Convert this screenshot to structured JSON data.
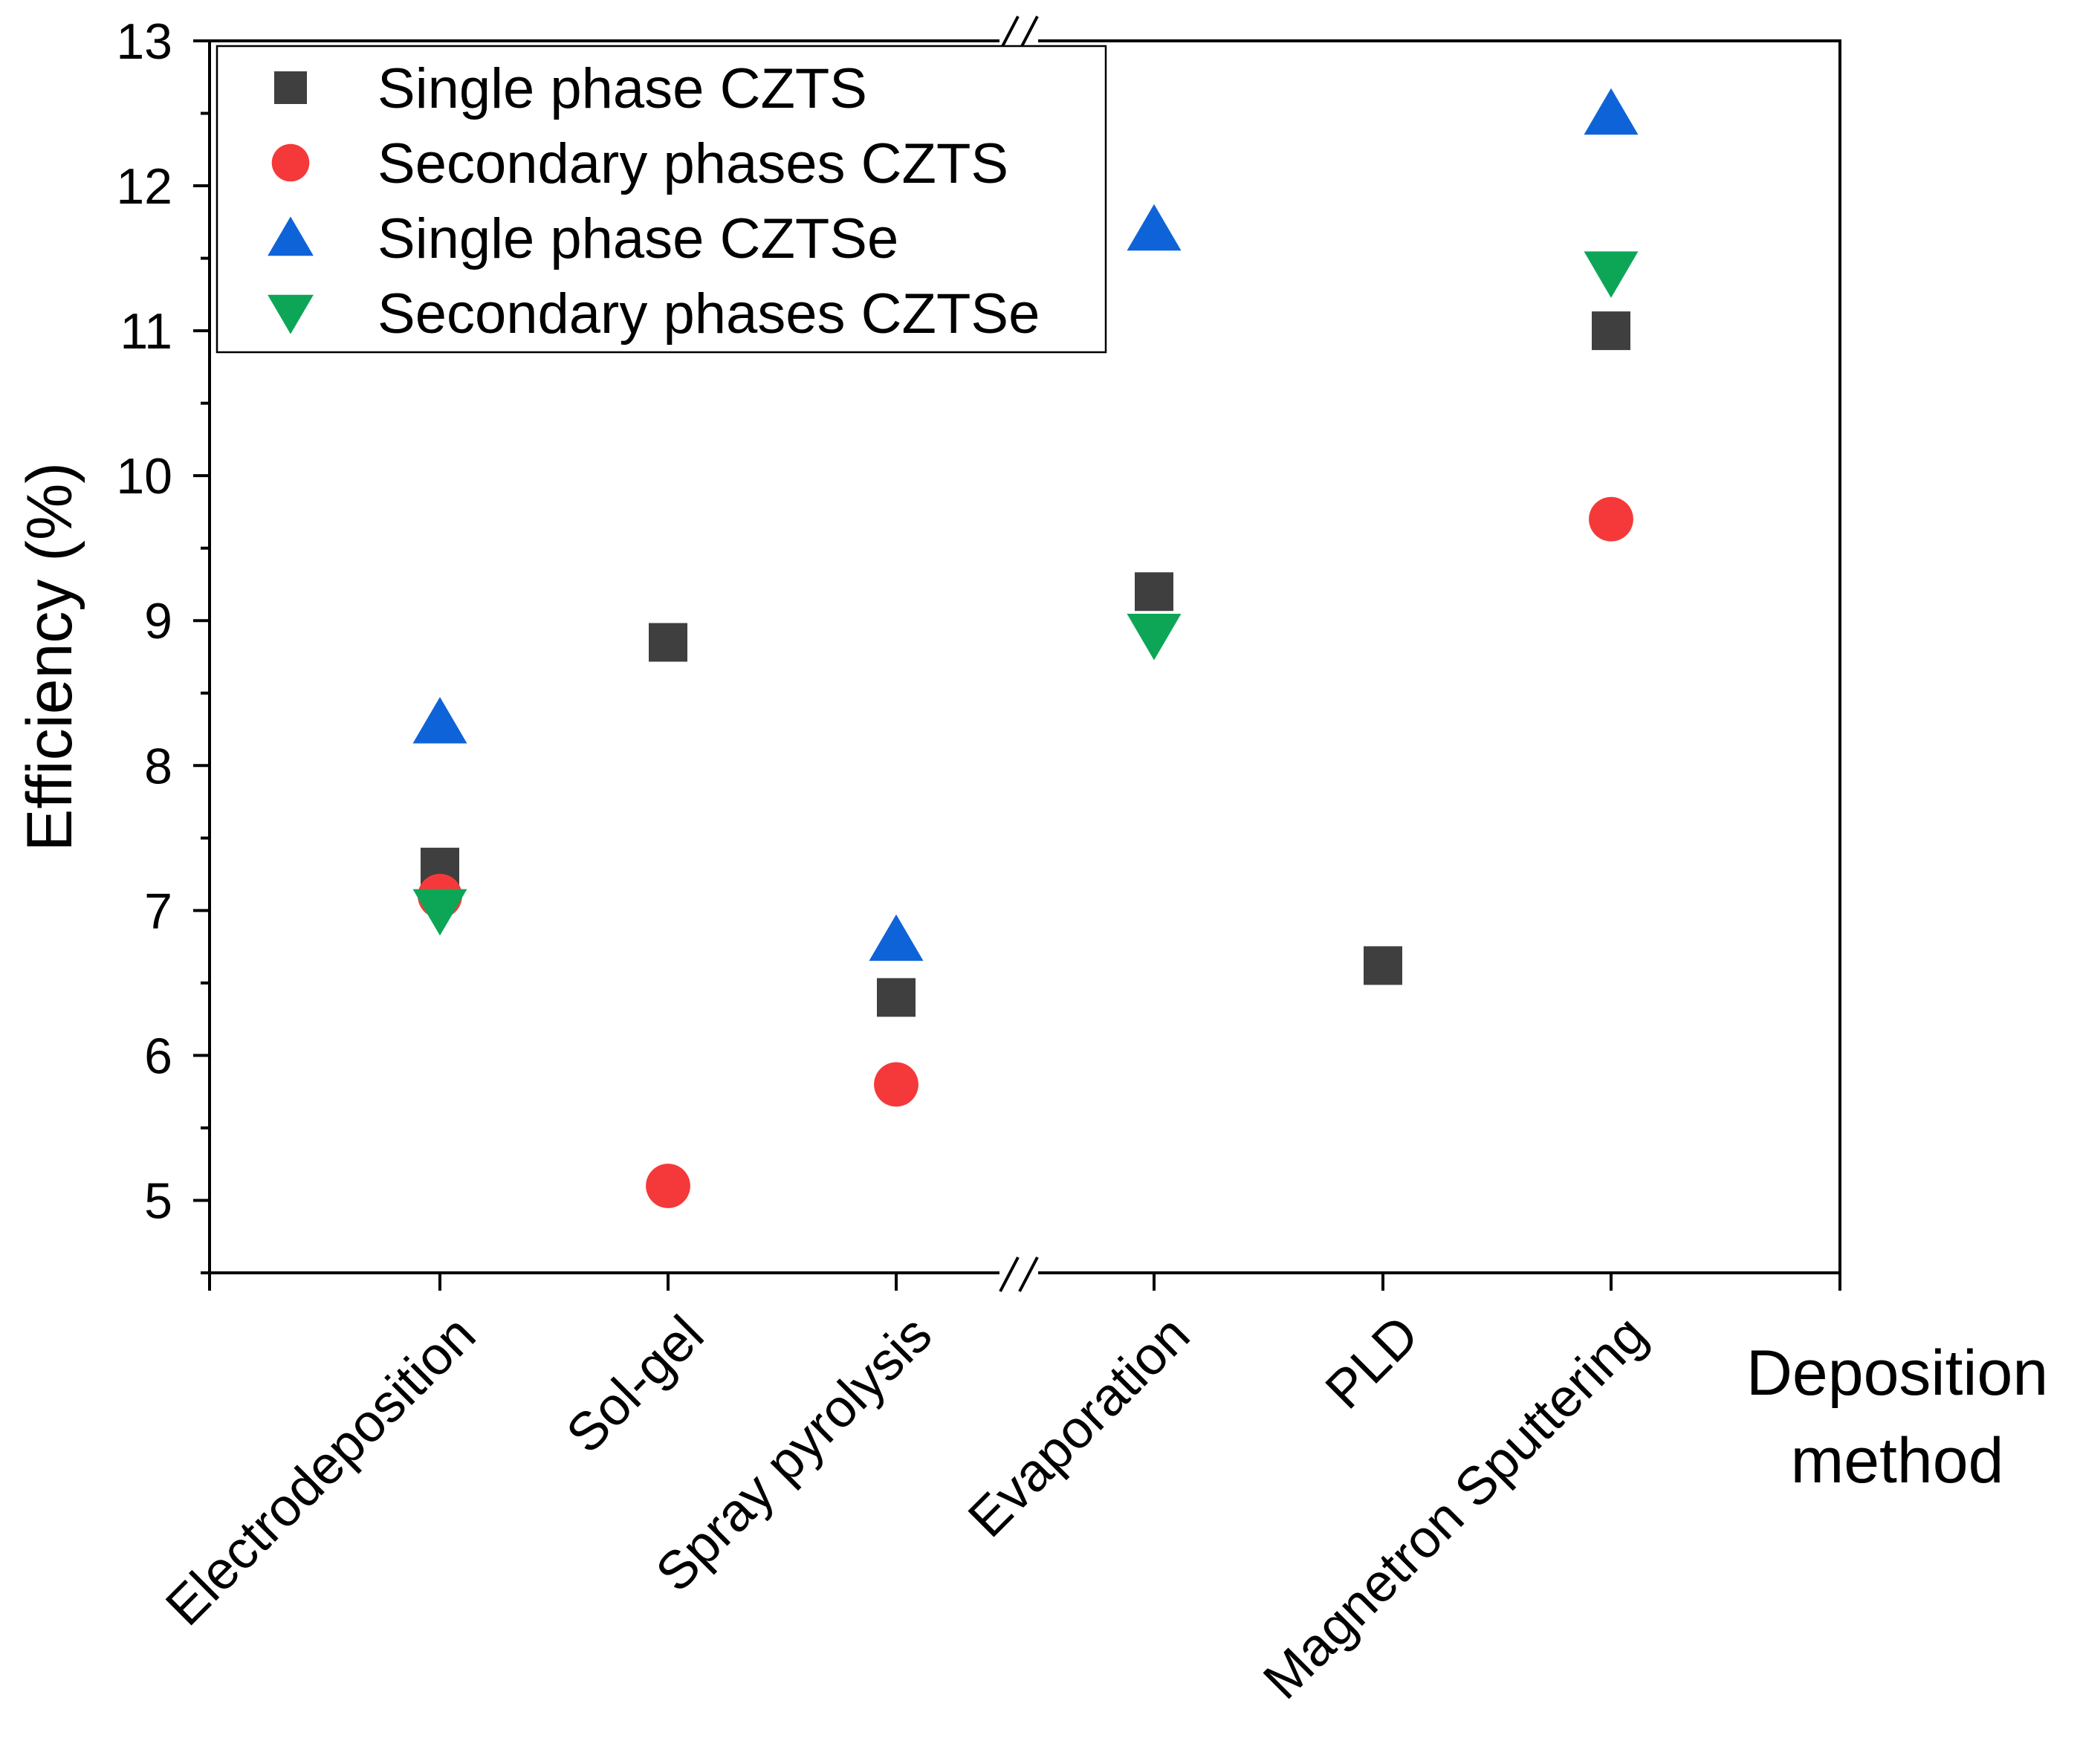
{
  "chart_data": {
    "type": "scatter",
    "title": "",
    "xlabel": "Deposition method",
    "xlabel_lines": [
      "Deposition",
      "method"
    ],
    "ylabel": "Efficiency (%)",
    "ylim": [
      4.5,
      13
    ],
    "yticks": [
      5,
      6,
      7,
      8,
      9,
      10,
      11,
      12,
      13
    ],
    "categories": [
      "Electrodeposition",
      "Sol-gel",
      "Spray pyrolysis",
      "Evaporation",
      "PLD",
      "Magnetron Sputtering"
    ],
    "axis_break": "between Spray pyrolysis and Evaporation",
    "legend_position": "top-left",
    "series": [
      {
        "name": "Single phase CZTS",
        "marker": "square",
        "color": "#3f3f3f",
        "values": [
          7.3,
          8.85,
          6.4,
          9.2,
          6.62,
          11.0
        ]
      },
      {
        "name": "Secondary phases CZTS",
        "marker": "circle",
        "color": "#f5393a",
        "values": [
          7.1,
          5.1,
          5.8,
          null,
          null,
          9.7
        ]
      },
      {
        "name": "Single phase CZTSe",
        "marker": "triangle-up",
        "color": "#0f63d8",
        "values": [
          8.3,
          null,
          6.8,
          11.7,
          null,
          12.5
        ]
      },
      {
        "name": "Secondary phases CZTSe",
        "marker": "triangle-down",
        "color": "#0da657",
        "values": [
          7.0,
          null,
          null,
          8.9,
          null,
          11.4
        ]
      }
    ]
  }
}
